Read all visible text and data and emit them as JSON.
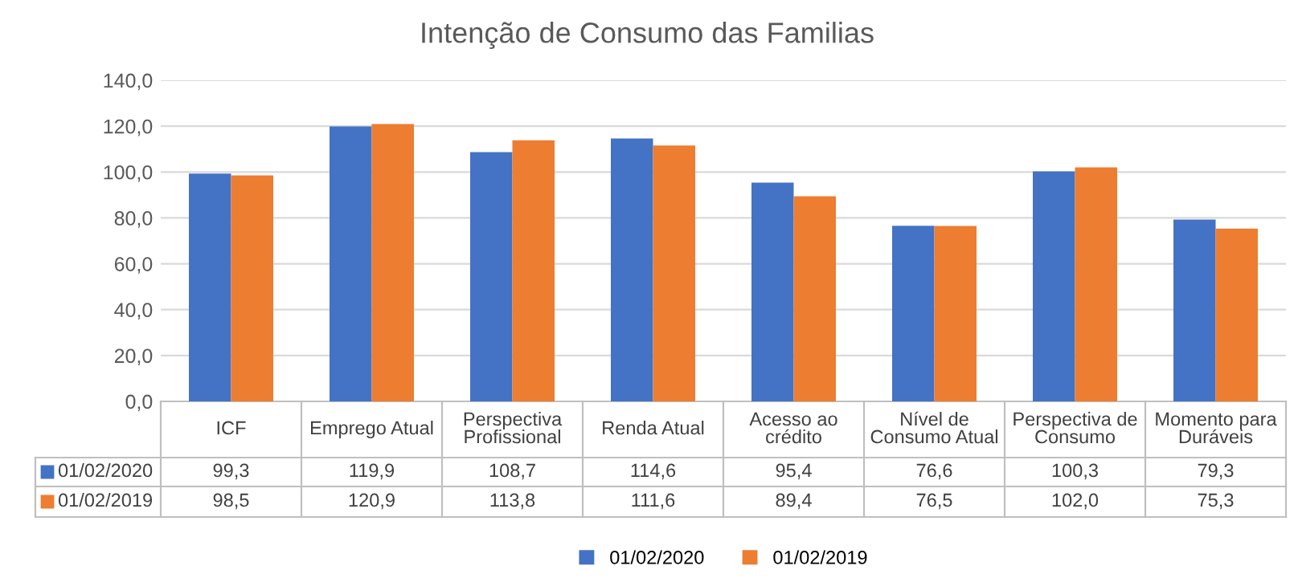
{
  "chart_data": {
    "type": "bar",
    "title": "Intenção de Consumo das Familias",
    "categories": [
      "ICF",
      "Emprego Atual",
      "Perspectiva\nProfissional",
      "Renda Atual",
      "Acesso ao\ncrédito",
      "Nível de\nConsumo Atual",
      "Perspectiva de\nConsumo",
      "Momento para\nDuráveis"
    ],
    "series": [
      {
        "name": "01/02/2020",
        "color": "#4472c4",
        "values": [
          99.3,
          119.9,
          108.7,
          114.6,
          95.4,
          76.6,
          100.3,
          79.3
        ],
        "value_labels": [
          "99,3",
          "119,9",
          "108,7",
          "114,6",
          "95,4",
          "76,6",
          "100,3",
          "79,3"
        ]
      },
      {
        "name": "01/02/2019",
        "color": "#ed7d31",
        "values": [
          98.5,
          120.9,
          113.8,
          111.6,
          89.4,
          76.5,
          102.0,
          75.3
        ],
        "value_labels": [
          "98,5",
          "120,9",
          "113,8",
          "111,6",
          "89,4",
          "76,5",
          "102,0",
          "75,3"
        ]
      }
    ],
    "ylim": [
      0,
      140
    ],
    "yticks": [
      {
        "value": 0,
        "label": "0,0"
      },
      {
        "value": 20,
        "label": "20,0"
      },
      {
        "value": 40,
        "label": "40,0"
      },
      {
        "value": 60,
        "label": "60,0"
      },
      {
        "value": 80,
        "label": "80,0"
      },
      {
        "value": 100,
        "label": "100,0"
      },
      {
        "value": 120,
        "label": "120,0"
      },
      {
        "value": 140,
        "label": "140,0"
      }
    ],
    "grid": "y",
    "legend": "bottom"
  }
}
